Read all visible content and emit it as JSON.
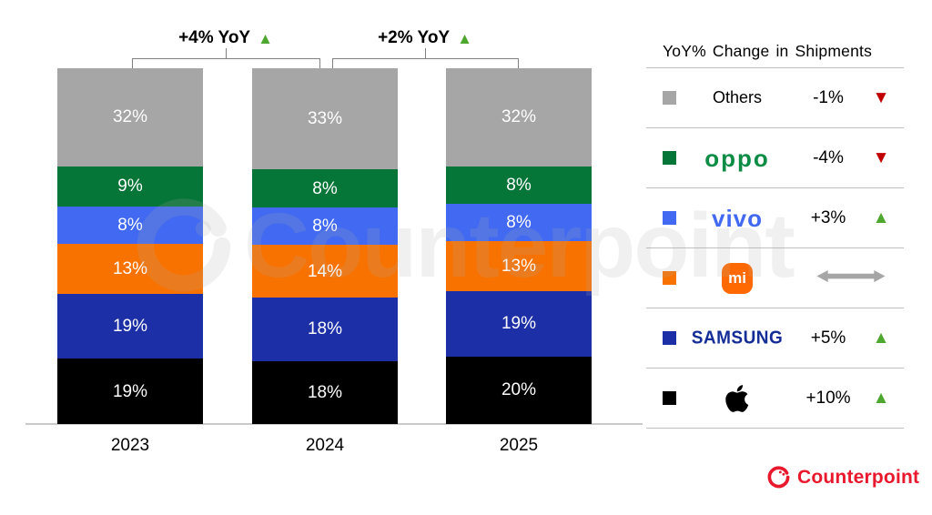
{
  "chart_data": {
    "type": "bar",
    "stacked": true,
    "unit": "%",
    "categories": [
      "2023",
      "2024",
      "2025"
    ],
    "series_order": "bottom-to-top",
    "series": [
      {
        "name": "Apple",
        "color": "#000000",
        "values": [
          19,
          18,
          20
        ]
      },
      {
        "name": "Samsung",
        "color": "#1c2fa6",
        "values": [
          19,
          18,
          19
        ]
      },
      {
        "name": "Xiaomi",
        "color": "#f87200",
        "values": [
          13,
          14,
          13
        ]
      },
      {
        "name": "vivo",
        "color": "#4169f1",
        "values": [
          8,
          8,
          8
        ]
      },
      {
        "name": "OPPO",
        "color": "#067538",
        "values": [
          9,
          8,
          8
        ]
      },
      {
        "name": "Others",
        "color": "#a6a6a6",
        "values": [
          32,
          33,
          32
        ]
      }
    ],
    "annotations": [
      {
        "label": "+4% YoY",
        "between": [
          "2023",
          "2024"
        ],
        "direction": "up"
      },
      {
        "label": "+2% YoY",
        "between": [
          "2024",
          "2025"
        ],
        "direction": "up"
      }
    ],
    "legend_position": "right",
    "grid": false
  },
  "legend": {
    "title": "YoY% Change in Shipments",
    "rows": [
      {
        "kind": "others",
        "label": "Others",
        "label_color": "#000000",
        "swatch": "#a6a6a6",
        "change": "-1%",
        "direction": "down"
      },
      {
        "kind": "oppo",
        "label": "oppo",
        "label_color": "#0d8c46",
        "swatch": "#067538",
        "change": "-4%",
        "direction": "down"
      },
      {
        "kind": "vivo",
        "label": "vivo",
        "label_color": "#4169f1",
        "swatch": "#4169f1",
        "change": "+3%",
        "direction": "up"
      },
      {
        "kind": "xiaomi",
        "label": "mi",
        "label_color": "#ff6900",
        "swatch": "#f87200",
        "change": "",
        "direction": "flat"
      },
      {
        "kind": "samsung",
        "label": "SAMSUNG",
        "label_color": "#142d96",
        "swatch": "#1c2fa6",
        "change": "+5%",
        "direction": "up"
      },
      {
        "kind": "apple",
        "label": "",
        "label_color": "#000000",
        "swatch": "#000000",
        "change": "+10%",
        "direction": "up"
      }
    ]
  },
  "watermark": {
    "text": "Counterpoint"
  },
  "footer": {
    "brand": "Counterpoint"
  },
  "colors": {
    "up_green": "#4ea72e",
    "down_red": "#c00000",
    "flat_gray": "#a6a6a6",
    "bracket_gray": "#808080",
    "baseline_gray": "#c9c9c9",
    "divider_gray": "#bfbfbf",
    "brand_red": "#e8192c"
  }
}
